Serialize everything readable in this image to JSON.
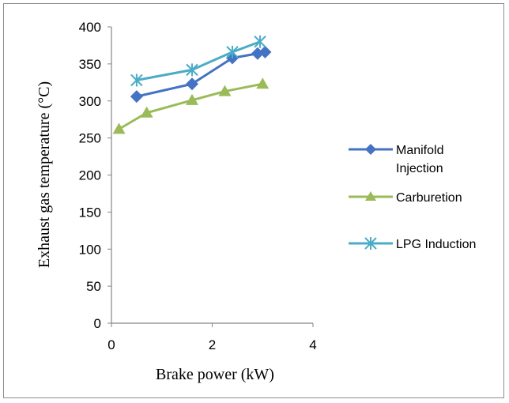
{
  "chart_data": {
    "type": "line",
    "title": "",
    "xlabel": "Brake power (kW)",
    "ylabel": "Exhaust gas temperature (°C)",
    "xlim": [
      0,
      4
    ],
    "ylim": [
      0,
      400
    ],
    "x_ticks": [
      "0",
      "2",
      "4"
    ],
    "y_ticks": [
      "0",
      "50",
      "100",
      "150",
      "200",
      "250",
      "300",
      "350",
      "400"
    ],
    "grid": false,
    "legend_position": "right",
    "series": [
      {
        "name": "Manifold Injection",
        "color": "#4472C4",
        "marker": "diamond",
        "x": [
          0.5,
          1.6,
          2.4,
          2.9,
          3.05
        ],
        "y": [
          306,
          323,
          358,
          364,
          366
        ]
      },
      {
        "name": "Carburetion",
        "color": "#9BBB59",
        "marker": "triangle",
        "x": [
          0.15,
          0.7,
          1.6,
          2.25,
          3.0
        ],
        "y": [
          262,
          284,
          301,
          313,
          323
        ]
      },
      {
        "name": "LPG Induction",
        "color": "#4BACC6",
        "marker": "star",
        "x": [
          0.5,
          1.6,
          2.4,
          2.95
        ],
        "y": [
          328,
          342,
          366,
          380
        ]
      }
    ],
    "legend": {
      "manifold_line1": "Manifold",
      "manifold_line2": "Injection",
      "carburetion": "Carburetion",
      "lpg": "LPG Induction"
    }
  }
}
